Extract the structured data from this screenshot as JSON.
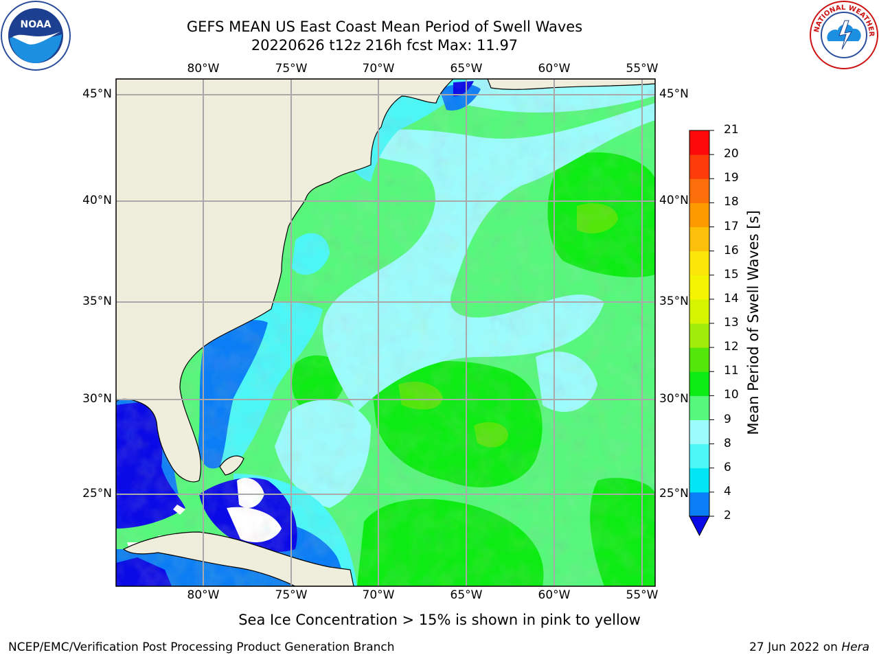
{
  "title": {
    "line1": "GEFS MEAN US East Coast Mean Period of Swell Waves",
    "line2": "20220626 t12z 216h fcst   Max: 11.97"
  },
  "logos": {
    "left": {
      "icon": "noaa-logo-icon",
      "text": "NOAA"
    },
    "right": {
      "icon": "nws-logo-icon",
      "text": "NATIONAL WEATHER SERVICE"
    }
  },
  "map": {
    "projection": "lat-lon",
    "lon_labels": [
      "80°W",
      "75°W",
      "70°W",
      "65°W",
      "60°W",
      "55°W"
    ],
    "lat_labels": [
      "45°N",
      "40°N",
      "35°N",
      "30°N",
      "25°N"
    ],
    "lon_values": [
      -80,
      -75,
      -70,
      -65,
      -60,
      -55
    ],
    "lat_values": [
      45,
      40,
      35,
      30,
      25
    ],
    "lon_range": [
      -85,
      -54.5
    ],
    "lat_range": [
      20.5,
      46
    ],
    "colors": {
      "land": "#efeedc",
      "coast": "#000000",
      "grid": "#a9a9a9",
      "frame": "#000000"
    }
  },
  "colorbar": {
    "label": "Mean Period of Swell Waves [s]",
    "ticks": [
      "2",
      "4",
      "6",
      "8",
      "9",
      "10",
      "11",
      "12",
      "13",
      "14",
      "15",
      "16",
      "17",
      "18",
      "19",
      "20",
      "21"
    ],
    "colors": [
      "#0a0ae6",
      "#0b7ef5",
      "#00e6f5",
      "#4bf7f7",
      "#9cfcfc",
      "#55f87a",
      "#0cec12",
      "#52e60a",
      "#a2ec0a",
      "#d6f400",
      "#f4f400",
      "#fce60a",
      "#fcc00a",
      "#fc9a00",
      "#fc6e0a",
      "#fc3c0a",
      "#fc0a0a"
    ]
  },
  "footnote": "Sea Ice Concentration > 15% is shown in pink to yellow",
  "credit_left": "NCEP/EMC/Verification Post Processing Product Generation Branch",
  "credit_right": {
    "date": "27 Jun 2022 on ",
    "host": "Hera"
  }
}
